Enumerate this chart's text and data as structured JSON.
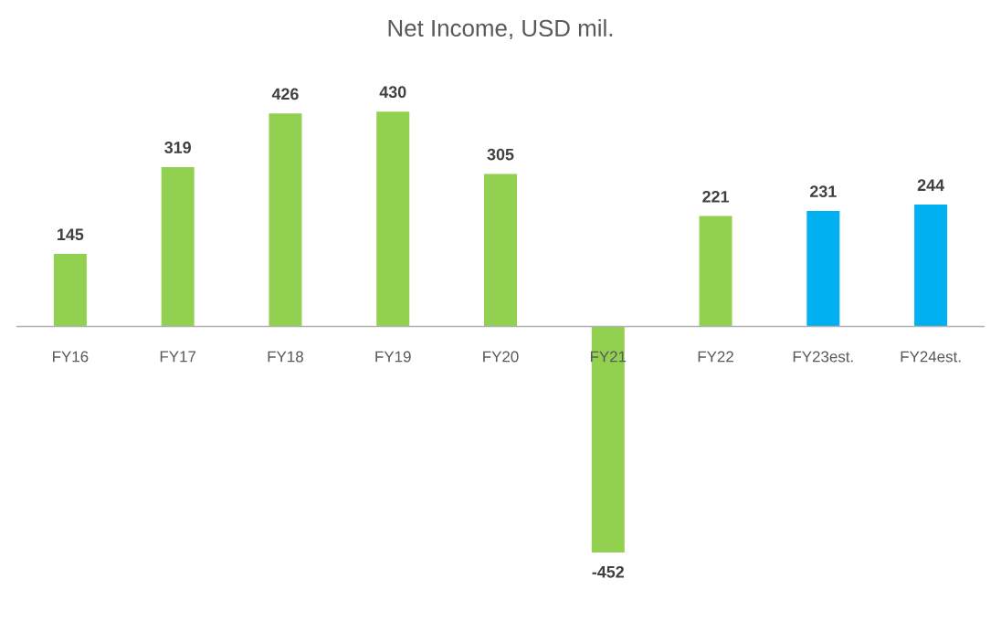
{
  "chart_data": {
    "type": "bar",
    "title": "Net Income, USD mil.",
    "categories": [
      "FY16",
      "FY17",
      "FY18",
      "FY19",
      "FY20",
      "FY21",
      "FY22",
      "FY23est.",
      "FY24est."
    ],
    "values": [
      145,
      319,
      426,
      430,
      305,
      -452,
      221,
      231,
      244
    ],
    "value_labels": [
      "145",
      "319",
      "426",
      "430",
      "305",
      "-452",
      "221",
      "231",
      "244"
    ],
    "colors": [
      "#92d050",
      "#92d050",
      "#92d050",
      "#92d050",
      "#92d050",
      "#92d050",
      "#92d050",
      "#00b0f0",
      "#00b0f0"
    ],
    "stacked": false
  }
}
